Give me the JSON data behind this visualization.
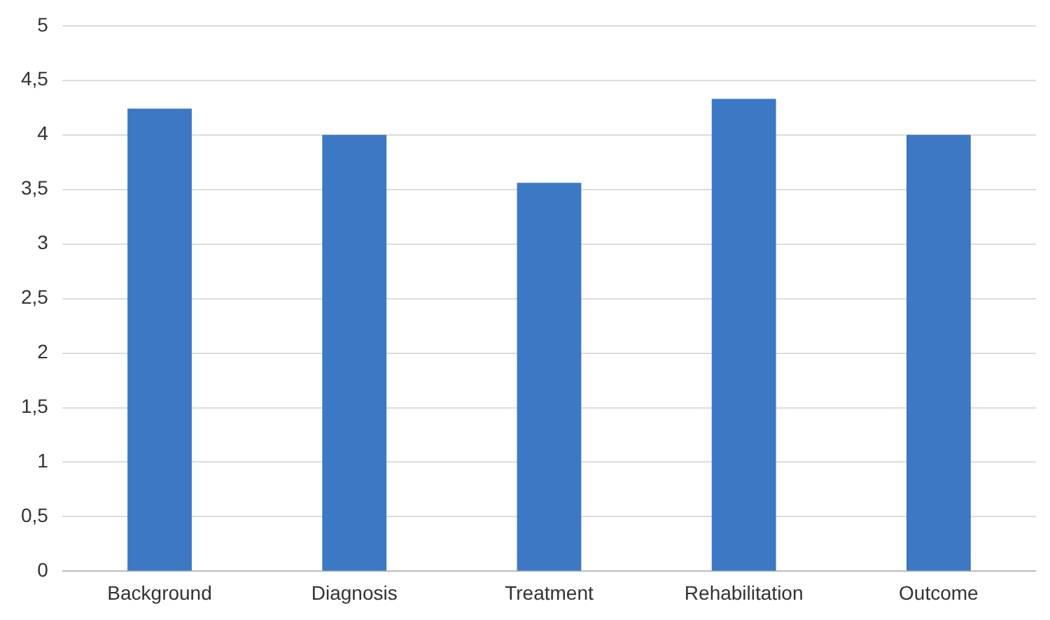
{
  "chart_data": {
    "type": "bar",
    "categories": [
      "Background",
      "Diagnosis",
      "Treatment",
      "Rehabilitation",
      "Outcome"
    ],
    "values": [
      4.24,
      4.0,
      3.56,
      4.33,
      4.0
    ],
    "color": "#3c78c3",
    "ylim": [
      0,
      5
    ],
    "yticks": [
      0,
      {
        "value": 0.5,
        "label": "0,5"
      },
      1,
      {
        "value": 1.5,
        "label": "1,5"
      },
      2,
      {
        "value": 2.5,
        "label": "2,5"
      },
      3,
      {
        "value": 3.5,
        "label": "3,5"
      },
      4,
      {
        "value": 4.5,
        "label": "4,5"
      },
      5
    ],
    "grid": "y",
    "legend": false
  }
}
